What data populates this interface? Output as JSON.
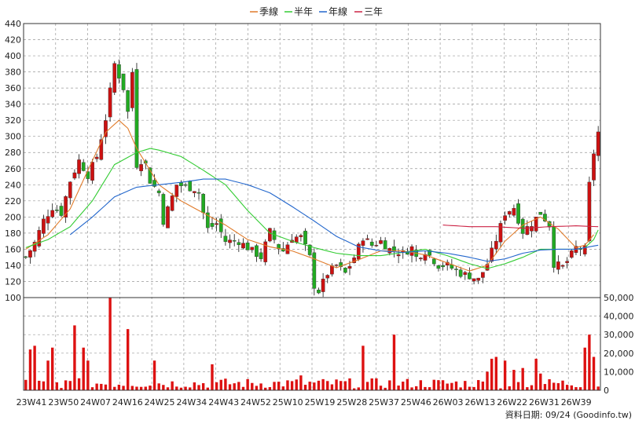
{
  "chart_data": {
    "type": "candlestick",
    "legend": [
      {
        "name": "季線",
        "color": "#e07b2a"
      },
      {
        "name": "半年",
        "color": "#33cc33"
      },
      {
        "name": "年線",
        "color": "#2266cc"
      },
      {
        "name": "三年",
        "color": "#cc2244"
      }
    ],
    "price_axis": {
      "ylim": [
        100,
        440
      ],
      "ticks": [
        100,
        120,
        140,
        160,
        180,
        200,
        220,
        240,
        260,
        280,
        300,
        320,
        340,
        360,
        380,
        400,
        420,
        440
      ]
    },
    "volume_axis": {
      "ylim": [
        0,
        50000
      ],
      "ticks": [
        "0",
        "10,000",
        "20,000",
        "30,000",
        "40,000",
        "50,000"
      ]
    },
    "x_labels": [
      "23W41",
      "23W50",
      "24W07",
      "24W16",
      "24W25",
      "24W34",
      "24W43",
      "24W52",
      "25W10",
      "25W19",
      "25W28",
      "25W37",
      "25W46",
      "26W03",
      "26W13",
      "26W22",
      "26W31",
      "26W39"
    ],
    "up_color": "#cc1111",
    "down_color": "#22aa22",
    "footer": "資料日期: 09/24  (Goodinfo.tw)",
    "waypoints": {
      "price": [
        [
          0,
          150
        ],
        [
          2,
          168
        ],
        [
          4,
          196
        ],
        [
          6,
          212
        ],
        [
          8,
          205
        ],
        [
          10,
          245
        ],
        [
          12,
          270
        ],
        [
          14,
          252
        ],
        [
          16,
          275
        ],
        [
          18,
          322
        ],
        [
          20,
          390
        ],
        [
          21,
          375
        ],
        [
          22,
          360
        ],
        [
          23,
          330
        ],
        [
          24,
          380
        ],
        [
          25,
          265
        ],
        [
          26,
          270
        ],
        [
          27,
          265
        ],
        [
          28,
          245
        ],
        [
          30,
          230
        ],
        [
          31,
          195
        ],
        [
          32,
          210
        ],
        [
          34,
          240
        ],
        [
          36,
          238
        ],
        [
          38,
          235
        ],
        [
          39,
          230
        ],
        [
          40,
          205
        ],
        [
          41,
          185
        ],
        [
          43,
          192
        ],
        [
          45,
          170
        ],
        [
          48,
          170
        ],
        [
          50,
          162
        ],
        [
          53,
          150
        ],
        [
          55,
          182
        ],
        [
          57,
          162
        ],
        [
          58,
          158
        ],
        [
          60,
          175
        ],
        [
          62,
          175
        ],
        [
          64,
          150
        ],
        [
          65,
          115
        ],
        [
          66,
          108
        ],
        [
          68,
          130
        ],
        [
          70,
          140
        ],
        [
          72,
          130
        ],
        [
          74,
          150
        ],
        [
          76,
          175
        ],
        [
          78,
          165
        ],
        [
          80,
          170
        ],
        [
          82,
          160
        ],
        [
          85,
          155
        ],
        [
          87,
          162
        ],
        [
          88,
          150
        ],
        [
          90,
          158
        ],
        [
          93,
          140
        ],
        [
          95,
          140
        ],
        [
          98,
          130
        ],
        [
          100,
          127
        ],
        [
          102,
          122
        ],
        [
          104,
          142
        ],
        [
          106,
          172
        ],
        [
          108,
          205
        ],
        [
          110,
          212
        ],
        [
          112,
          182
        ],
        [
          114,
          192
        ],
        [
          116,
          205
        ],
        [
          118,
          190
        ],
        [
          119,
          142
        ],
        [
          121,
          138
        ],
        [
          122,
          145
        ],
        [
          124,
          162
        ],
        [
          126,
          160
        ],
        [
          127,
          240
        ],
        [
          128,
          280
        ],
        [
          129,
          305
        ]
      ],
      "ma_quarter": [
        [
          0,
          160
        ],
        [
          5,
          178
        ],
        [
          10,
          210
        ],
        [
          14,
          258
        ],
        [
          18,
          305
        ],
        [
          21,
          320
        ],
        [
          23,
          310
        ],
        [
          25,
          285
        ],
        [
          30,
          240
        ],
        [
          35,
          220
        ],
        [
          40,
          205
        ],
        [
          45,
          190
        ],
        [
          50,
          172
        ],
        [
          55,
          163
        ],
        [
          60,
          158
        ],
        [
          65,
          148
        ],
        [
          70,
          137
        ],
        [
          75,
          147
        ],
        [
          80,
          158
        ],
        [
          85,
          158
        ],
        [
          90,
          153
        ],
        [
          95,
          143
        ],
        [
          100,
          133
        ],
        [
          104,
          140
        ],
        [
          108,
          170
        ],
        [
          112,
          190
        ],
        [
          116,
          200
        ],
        [
          120,
          185
        ],
        [
          124,
          162
        ],
        [
          126,
          165
        ],
        [
          128,
          178
        ]
      ],
      "ma_half": [
        [
          0,
          162
        ],
        [
          5,
          172
        ],
        [
          10,
          188
        ],
        [
          15,
          220
        ],
        [
          20,
          265
        ],
        [
          25,
          280
        ],
        [
          28,
          285
        ],
        [
          30,
          283
        ],
        [
          35,
          275
        ],
        [
          40,
          258
        ],
        [
          45,
          240
        ],
        [
          50,
          208
        ],
        [
          55,
          180
        ],
        [
          60,
          170
        ],
        [
          65,
          162
        ],
        [
          70,
          155
        ],
        [
          75,
          152
        ],
        [
          80,
          152
        ],
        [
          85,
          156
        ],
        [
          90,
          160
        ],
        [
          95,
          152
        ],
        [
          100,
          142
        ],
        [
          104,
          136
        ],
        [
          108,
          142
        ],
        [
          112,
          150
        ],
        [
          116,
          160
        ],
        [
          120,
          160
        ],
        [
          124,
          160
        ],
        [
          126,
          162
        ],
        [
          128,
          172
        ],
        [
          129,
          184
        ]
      ],
      "ma_year": [
        [
          10,
          178
        ],
        [
          15,
          200
        ],
        [
          20,
          225
        ],
        [
          25,
          237
        ],
        [
          30,
          240
        ],
        [
          35,
          243
        ],
        [
          40,
          247
        ],
        [
          45,
          247
        ],
        [
          50,
          240
        ],
        [
          55,
          230
        ],
        [
          60,
          213
        ],
        [
          65,
          195
        ],
        [
          70,
          176
        ],
        [
          75,
          163
        ],
        [
          80,
          158
        ],
        [
          85,
          156
        ],
        [
          90,
          158
        ],
        [
          95,
          155
        ],
        [
          100,
          150
        ],
        [
          104,
          145
        ],
        [
          108,
          148
        ],
        [
          112,
          155
        ],
        [
          116,
          159
        ],
        [
          120,
          160
        ],
        [
          124,
          160
        ],
        [
          129,
          165
        ]
      ],
      "ma_3y": [
        [
          94,
          190
        ],
        [
          100,
          188
        ],
        [
          106,
          188
        ],
        [
          112,
          186
        ],
        [
          118,
          188
        ],
        [
          124,
          189
        ],
        [
          129,
          188
        ]
      ],
      "volume_spikes": [
        [
          1,
          22000
        ],
        [
          2,
          24000
        ],
        [
          5,
          16000
        ],
        [
          6,
          23000
        ],
        [
          10,
          5000
        ],
        [
          11,
          35000
        ],
        [
          13,
          23000
        ],
        [
          14,
          16000
        ],
        [
          19,
          50000
        ],
        [
          23,
          33000
        ],
        [
          29,
          16000
        ],
        [
          42,
          14000
        ],
        [
          62,
          8000
        ],
        [
          76,
          24000
        ],
        [
          83,
          30000
        ],
        [
          104,
          10000
        ],
        [
          105,
          17000
        ],
        [
          106,
          18000
        ],
        [
          108,
          16000
        ],
        [
          110,
          11000
        ],
        [
          112,
          12000
        ],
        [
          115,
          17000
        ],
        [
          116,
          9000
        ],
        [
          126,
          23000
        ],
        [
          127,
          30000
        ],
        [
          128,
          18000
        ]
      ]
    }
  }
}
